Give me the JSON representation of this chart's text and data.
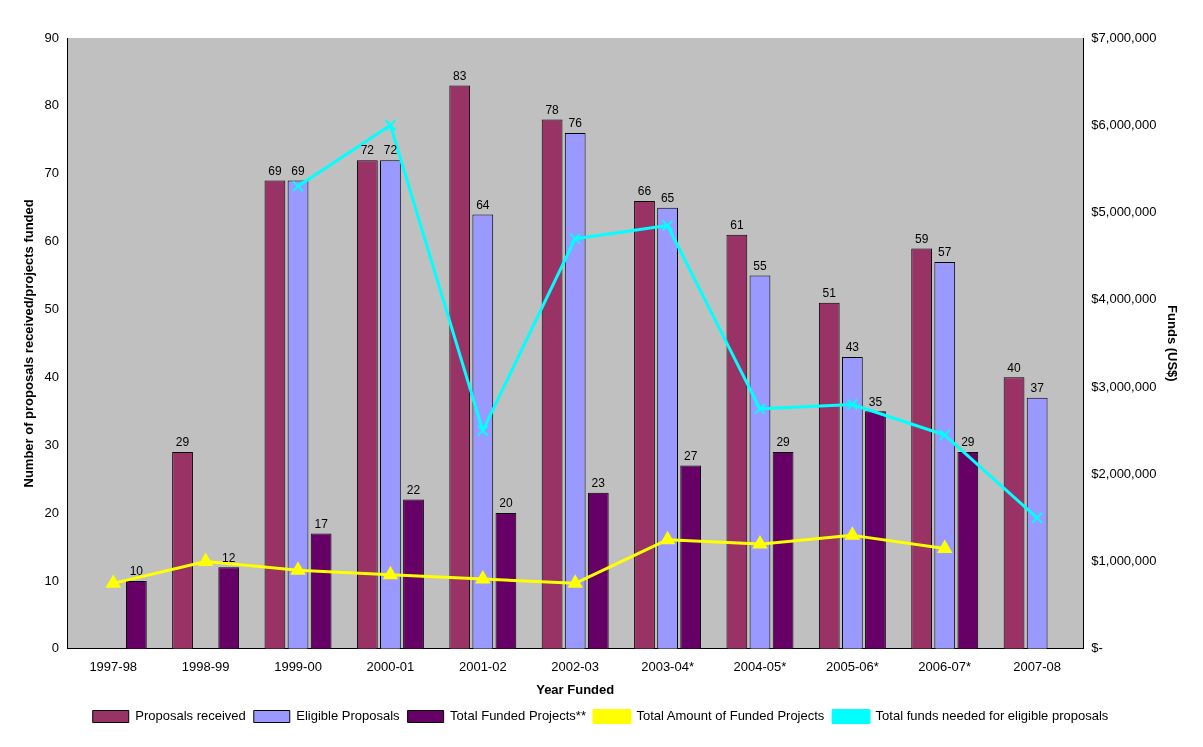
{
  "chart_data": {
    "type": "bar",
    "xlabel": "Year Funded",
    "ylabel": "Number of proposals received/projects funded",
    "y2label": "Funds (US$)",
    "categories": [
      "1997-98",
      "1998-99",
      "1999-00",
      "2000-01",
      "2001-02",
      "2002-03",
      "2003-04*",
      "2004-05*",
      "2005-06*",
      "2006-07*",
      "2007-08"
    ],
    "series": [
      {
        "name": "Proposals received",
        "color": "#993366",
        "values": [
          null,
          29,
          69,
          72,
          83,
          78,
          66,
          61,
          51,
          59,
          40
        ],
        "value_labels": [
          null,
          "29",
          "69",
          "72",
          "83",
          "78",
          "66",
          "61",
          "51",
          "59",
          "40"
        ]
      },
      {
        "name": "Eligible Proposals",
        "color": "#9999ff",
        "values": [
          null,
          null,
          69,
          72,
          64,
          76,
          65,
          55,
          43,
          57,
          37
        ],
        "value_labels": [
          null,
          null,
          "69",
          "72",
          "64",
          "76",
          "65",
          "55",
          "43",
          "57",
          "37"
        ]
      },
      {
        "name": "Total Funded Projects**",
        "color": "#660066",
        "values": [
          10,
          12,
          17,
          22,
          20,
          23,
          27,
          29,
          35,
          29,
          null
        ],
        "value_labels": [
          "10",
          "12",
          "17",
          "22",
          "20",
          "23",
          "27",
          "29",
          "35",
          "29",
          null
        ]
      },
      {
        "name": "Total Amount of Funded Projects",
        "type": "line",
        "axis": "y2",
        "marker": "triangle",
        "color": "#ffff00",
        "values": [
          750000,
          1000000,
          900000,
          850000,
          800000,
          750000,
          1250000,
          1200000,
          1300000,
          1150000,
          null
        ]
      },
      {
        "name": "Total funds needed for eligible proposals",
        "type": "line",
        "axis": "y2",
        "marker": "cross",
        "color": "#00ffff",
        "values": [
          null,
          null,
          5300000,
          6000000,
          2500000,
          4700000,
          4850000,
          2750000,
          2800000,
          2450000,
          1500000
        ]
      }
    ],
    "ylim": [
      0,
      90
    ],
    "yticks": [
      0,
      10,
      20,
      30,
      40,
      50,
      60,
      70,
      80,
      90
    ],
    "y2lim": [
      0,
      7000000
    ],
    "y2ticks": [
      {
        "value": 0,
        "label": "$-"
      },
      {
        "value": 1000000,
        "label": "$1,000,000"
      },
      {
        "value": 2000000,
        "label": "$2,000,000"
      },
      {
        "value": 3000000,
        "label": "$3,000,000"
      },
      {
        "value": 4000000,
        "label": "$4,000,000"
      },
      {
        "value": 5000000,
        "label": "$5,000,000"
      },
      {
        "value": 6000000,
        "label": "$6,000,000"
      },
      {
        "value": 7000000,
        "label": "$7,000,000"
      }
    ],
    "grid": false,
    "legend": "bottom"
  }
}
